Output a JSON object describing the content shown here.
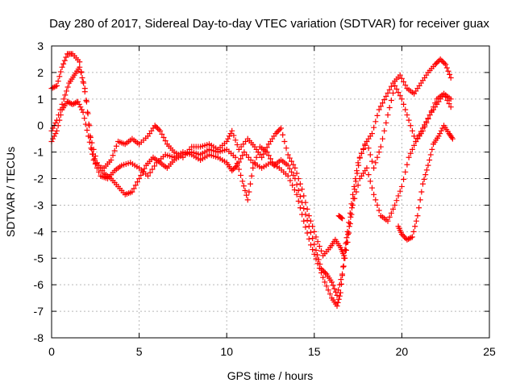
{
  "chart_data": {
    "type": "scatter",
    "title": "Day 280 of 2017, Sidereal Day-to-day VTEC variation (SDTVAR) for receiver guax",
    "xlabel": "GPS time / hours",
    "ylabel": "SDTVAR / TECUs",
    "xlim": [
      0,
      25
    ],
    "ylim": [
      -8,
      3
    ],
    "xticks": [
      "0",
      "5",
      "10",
      "15",
      "20",
      "25"
    ],
    "yticks": [
      "-8",
      "-7",
      "-6",
      "-5",
      "-4",
      "-3",
      "-2",
      "-1",
      "0",
      "1",
      "2",
      "3"
    ],
    "grid": true,
    "marker": "+",
    "color": "#ff0000",
    "series": [
      {
        "points": [
          [
            0.0,
            -0.6
          ],
          [
            0.3,
            -0.2
          ],
          [
            0.6,
            0.6
          ],
          [
            0.9,
            0.9
          ],
          [
            1.2,
            0.8
          ],
          [
            1.5,
            0.9
          ],
          [
            1.8,
            0.5
          ],
          [
            2.1,
            -0.4
          ],
          [
            2.4,
            -1.3
          ],
          [
            2.8,
            -1.9
          ],
          [
            3.2,
            -2.0
          ],
          [
            3.6,
            -1.7
          ],
          [
            4.0,
            -1.5
          ],
          [
            4.5,
            -1.4
          ],
          [
            5.0,
            -1.6
          ],
          [
            5.5,
            -1.9
          ],
          [
            6.0,
            -1.4
          ],
          [
            6.5,
            -1.1
          ],
          [
            7.0,
            -1.2
          ],
          [
            7.5,
            -1.0
          ],
          [
            8.0,
            -1.1
          ],
          [
            8.5,
            -1.3
          ],
          [
            9.0,
            -1.1
          ],
          [
            9.5,
            -1.2
          ],
          [
            10.0,
            -1.4
          ],
          [
            10.3,
            -1.7
          ],
          [
            10.6,
            -1.5
          ],
          [
            11.0,
            -1.0
          ],
          [
            11.5,
            -1.4
          ],
          [
            12.0,
            -1.6
          ],
          [
            12.5,
            -1.4
          ],
          [
            13.0,
            -1.6
          ],
          [
            13.5,
            -1.9
          ],
          [
            14.0,
            -2.6
          ],
          [
            14.4,
            -3.6
          ],
          [
            14.8,
            -4.5
          ],
          [
            15.2,
            -5.2
          ],
          [
            15.6,
            -5.9
          ],
          [
            16.0,
            -6.5
          ],
          [
            16.3,
            -6.8
          ],
          [
            16.5,
            -6.3
          ],
          [
            16.7,
            -5.0
          ],
          [
            17.0,
            -3.8
          ],
          [
            17.3,
            -2.4
          ],
          [
            17.6,
            -1.2
          ],
          [
            18.0,
            -0.6
          ],
          [
            18.4,
            -1.6
          ],
          [
            18.8,
            -0.8
          ],
          [
            19.2,
            0.4
          ],
          [
            19.6,
            1.5
          ],
          [
            20.0,
            1.0
          ],
          [
            20.4,
            0.2
          ],
          [
            20.8,
            -0.6
          ],
          [
            21.2,
            -0.2
          ],
          [
            21.6,
            0.4
          ],
          [
            22.0,
            1.0
          ],
          [
            22.4,
            1.2
          ],
          [
            22.8,
            0.7
          ]
        ]
      },
      {
        "points": [
          [
            0.0,
            1.4
          ],
          [
            0.3,
            1.5
          ],
          [
            0.6,
            2.2
          ],
          [
            0.9,
            2.7
          ],
          [
            1.2,
            2.7
          ],
          [
            1.6,
            2.4
          ],
          [
            2.0,
            0.9
          ],
          [
            2.3,
            -0.9
          ],
          [
            2.6,
            -1.6
          ],
          [
            3.0,
            -1.6
          ],
          [
            3.4,
            -1.3
          ],
          [
            3.8,
            -0.6
          ],
          [
            4.2,
            -0.7
          ],
          [
            4.6,
            -0.5
          ],
          [
            5.0,
            -0.7
          ],
          [
            5.5,
            -0.4
          ],
          [
            5.9,
            0.0
          ],
          [
            6.2,
            -0.2
          ],
          [
            6.6,
            -0.7
          ],
          [
            7.0,
            -1.0
          ],
          [
            7.5,
            -1.2
          ],
          [
            8.0,
            -0.8
          ],
          [
            8.5,
            -0.8
          ],
          [
            9.0,
            -0.7
          ],
          [
            9.5,
            -0.9
          ],
          [
            10.0,
            -0.6
          ],
          [
            10.3,
            -0.2
          ],
          [
            10.7,
            -0.9
          ],
          [
            11.2,
            -0.5
          ],
          [
            11.6,
            -0.8
          ],
          [
            12.0,
            -1.2
          ],
          [
            12.4,
            -0.7
          ],
          [
            12.8,
            -0.3
          ],
          [
            13.1,
            -0.1
          ],
          [
            13.5,
            -1.1
          ],
          [
            13.9,
            -1.6
          ],
          [
            14.3,
            -2.4
          ],
          [
            14.7,
            -3.4
          ],
          [
            15.1,
            -4.2
          ],
          [
            15.5,
            -4.9
          ],
          [
            15.9,
            -4.6
          ],
          [
            16.2,
            -4.3
          ],
          [
            16.5,
            -4.6
          ],
          [
            16.7,
            -4.9
          ],
          [
            16.9,
            -4.0
          ],
          [
            17.2,
            -2.6
          ],
          [
            17.5,
            -1.4
          ],
          [
            17.9,
            -0.7
          ],
          [
            18.3,
            -0.3
          ],
          [
            18.7,
            0.6
          ],
          [
            19.1,
            1.1
          ],
          [
            19.5,
            1.6
          ],
          [
            19.9,
            1.9
          ],
          [
            20.3,
            1.4
          ],
          [
            20.7,
            1.2
          ],
          [
            21.1,
            1.6
          ],
          [
            21.5,
            2.0
          ],
          [
            21.9,
            2.3
          ],
          [
            22.2,
            2.5
          ],
          [
            22.5,
            2.3
          ],
          [
            22.8,
            1.8
          ]
        ]
      },
      {
        "points": [
          [
            0.0,
            -0.2
          ],
          [
            0.3,
            0.2
          ],
          [
            0.7,
            1.0
          ],
          [
            1.0,
            1.6
          ],
          [
            1.3,
            1.9
          ],
          [
            1.6,
            2.2
          ],
          [
            1.9,
            1.4
          ],
          [
            2.2,
            -0.4
          ],
          [
            2.6,
            -1.4
          ],
          [
            3.0,
            -1.8
          ],
          [
            3.4,
            -2.0
          ],
          [
            3.8,
            -2.3
          ],
          [
            4.2,
            -2.6
          ],
          [
            4.6,
            -2.5
          ],
          [
            5.0,
            -2.0
          ],
          [
            5.4,
            -1.5
          ],
          [
            5.8,
            -1.2
          ],
          [
            6.2,
            -1.4
          ],
          [
            6.6,
            -1.6
          ],
          [
            7.0,
            -1.3
          ],
          [
            7.5,
            -1.1
          ],
          [
            8.0,
            -1.0
          ],
          [
            8.5,
            -1.1
          ],
          [
            9.0,
            -0.9
          ],
          [
            9.5,
            -1.0
          ],
          [
            10.0,
            -0.9
          ],
          [
            10.5,
            -1.2
          ],
          [
            10.9,
            -2.1
          ],
          [
            11.2,
            -2.8
          ],
          [
            11.5,
            -1.6
          ],
          [
            11.9,
            -0.8
          ],
          [
            12.3,
            -1.0
          ],
          [
            12.7,
            -1.5
          ],
          [
            13.1,
            -1.3
          ],
          [
            13.5,
            -1.5
          ],
          [
            13.9,
            -2.0
          ],
          [
            14.3,
            -2.9
          ],
          [
            14.7,
            -3.8
          ],
          [
            15.1,
            -4.7
          ],
          [
            15.4,
            -5.4
          ],
          [
            15.7,
            -5.6
          ],
          [
            16.0,
            -5.9
          ],
          [
            16.3,
            -6.4
          ],
          [
            16.6,
            -5.6
          ],
          [
            16.9,
            -4.4
          ],
          [
            17.2,
            -3.0
          ],
          [
            17.6,
            -2.0
          ],
          [
            18.0,
            -1.6
          ],
          [
            18.4,
            -2.6
          ],
          [
            18.8,
            -3.4
          ],
          [
            19.2,
            -3.6
          ],
          [
            19.6,
            -3.0
          ],
          [
            20.0,
            -2.3
          ],
          [
            20.4,
            -1.2
          ],
          [
            20.8,
            -0.6
          ],
          [
            21.2,
            -0.1
          ],
          [
            21.6,
            0.4
          ],
          [
            22.0,
            0.8
          ],
          [
            22.4,
            1.2
          ],
          [
            22.8,
            1.0
          ]
        ]
      },
      {
        "points": [
          [
            16.4,
            -3.4
          ],
          [
            16.6,
            -3.5
          ],
          [
            19.8,
            -3.8
          ],
          [
            20.0,
            -4.1
          ],
          [
            20.3,
            -4.3
          ],
          [
            20.6,
            -4.2
          ],
          [
            20.9,
            -3.4
          ],
          [
            21.2,
            -2.2
          ],
          [
            21.5,
            -1.5
          ],
          [
            21.8,
            -0.7
          ],
          [
            22.1,
            -0.4
          ],
          [
            22.4,
            0.0
          ],
          [
            22.7,
            -0.3
          ],
          [
            22.9,
            -0.5
          ]
        ]
      }
    ]
  }
}
